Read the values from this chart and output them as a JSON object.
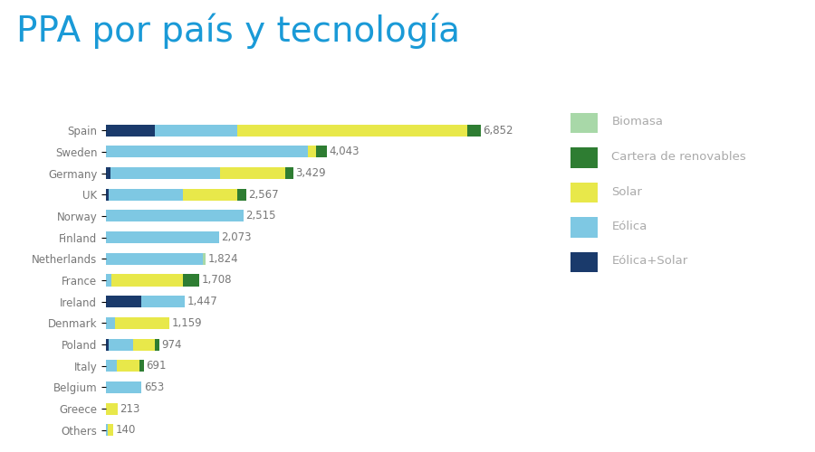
{
  "title": "PPA por país y tecnología",
  "title_color": "#1a9ad7",
  "title_fontsize": 28,
  "background_color": "#ffffff",
  "countries": [
    "Spain",
    "Sweden",
    "Germany",
    "UK",
    "Norway",
    "Finland",
    "Netherlands",
    "France",
    "Ireland",
    "Denmark",
    "Poland",
    "Italy",
    "Belgium",
    "Greece",
    "Others"
  ],
  "totals": [
    6852,
    4043,
    3429,
    2567,
    2515,
    2073,
    1824,
    1708,
    1447,
    1159,
    974,
    691,
    653,
    213,
    140
  ],
  "segments": {
    "Eólica+Solar": [
      900,
      0,
      80,
      50,
      0,
      0,
      0,
      0,
      650,
      0,
      50,
      0,
      0,
      0,
      0
    ],
    "Eólica": [
      1500,
      3700,
      2000,
      1350,
      2515,
      2073,
      1780,
      100,
      797,
      159,
      450,
      200,
      653,
      0,
      40
    ],
    "Biomasa": [
      0,
      0,
      0,
      0,
      0,
      0,
      44,
      0,
      0,
      0,
      0,
      0,
      0,
      0,
      0
    ],
    "Solar": [
      4202,
      150,
      1200,
      1000,
      0,
      0,
      0,
      1300,
      0,
      1000,
      400,
      420,
      0,
      213,
      100
    ],
    "Cartera de renovables": [
      250,
      193,
      149,
      167,
      0,
      0,
      0,
      308,
      0,
      0,
      74,
      71,
      0,
      0,
      0
    ]
  },
  "colors": {
    "Biomasa": "#a8d8a8",
    "Cartera de renovables": "#2e7d32",
    "Solar": "#e8e84a",
    "Eólica": "#7ec8e3",
    "Eólica+Solar": "#1a3a6b"
  },
  "legend_order": [
    "Biomasa",
    "Cartera de renovables",
    "Solar",
    "Eólica",
    "Eólica+Solar"
  ],
  "bar_height": 0.55,
  "label_fontsize": 8.5,
  "tick_fontsize": 8.5,
  "legend_fontsize": 9.5
}
